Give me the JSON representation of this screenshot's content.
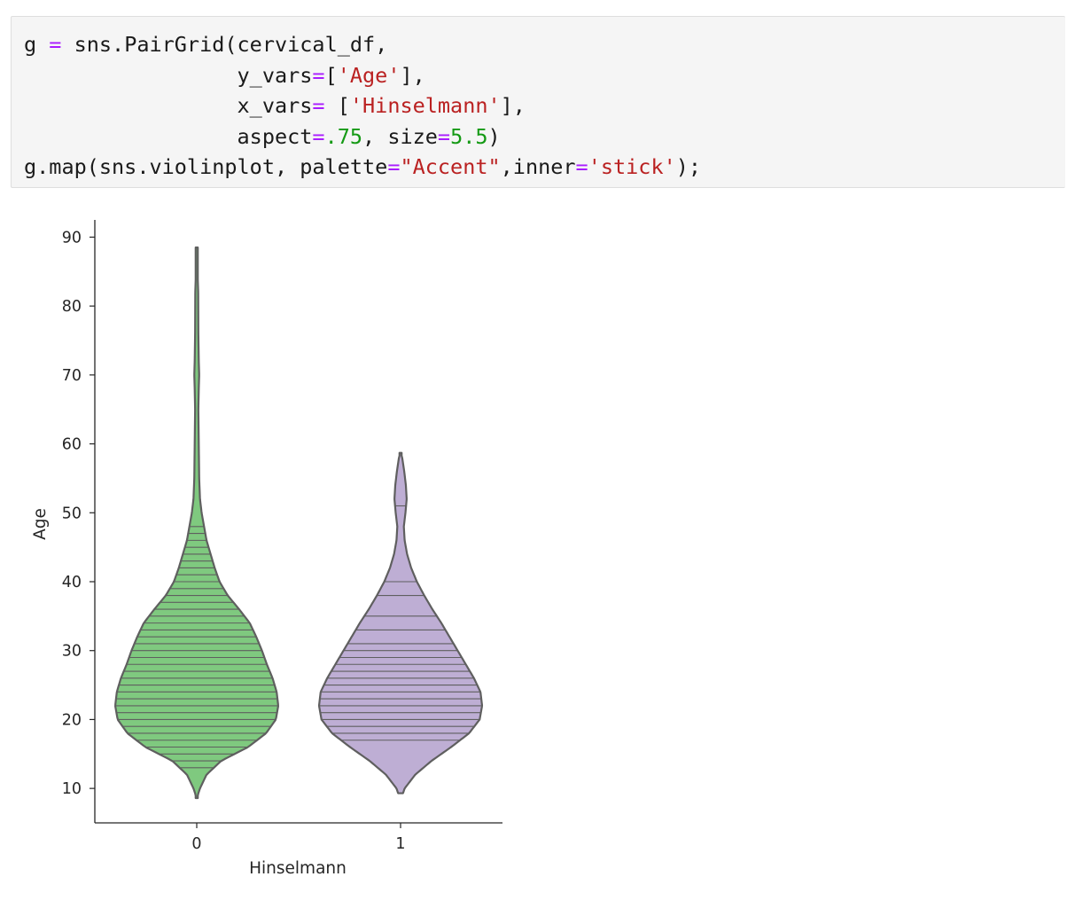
{
  "code_cell": {
    "lines": [
      [
        {
          "t": "g "
        },
        {
          "t": "=",
          "c": "op"
        },
        {
          "t": " sns.PairGrid(cervical_df,"
        }
      ],
      [
        {
          "t": "                 y_vars"
        },
        {
          "t": "=",
          "c": "op"
        },
        {
          "t": "["
        },
        {
          "t": "'Age'",
          "c": "str"
        },
        {
          "t": "],"
        }
      ],
      [
        {
          "t": "                 x_vars"
        },
        {
          "t": "=",
          "c": "op"
        },
        {
          "t": " ["
        },
        {
          "t": "'Hinselmann'",
          "c": "str"
        },
        {
          "t": "],"
        }
      ],
      [
        {
          "t": "                 aspect"
        },
        {
          "t": "=",
          "c": "op"
        },
        {
          "t": ".75",
          "c": "num"
        },
        {
          "t": ", size"
        },
        {
          "t": "=",
          "c": "op"
        },
        {
          "t": "5.5",
          "c": "num"
        },
        {
          "t": ")"
        }
      ],
      [
        {
          "t": "g.map(sns.violinplot, palette"
        },
        {
          "t": "=",
          "c": "op"
        },
        {
          "t": "\"Accent\"",
          "c": "str"
        },
        {
          "t": ",inner"
        },
        {
          "t": "=",
          "c": "op"
        },
        {
          "t": "'stick'",
          "c": "str"
        },
        {
          "t": ");"
        }
      ]
    ]
  },
  "chart_data": {
    "type": "violin",
    "xlabel": "Hinselmann",
    "ylabel": "Age",
    "categories": [
      "0",
      "1"
    ],
    "ylim": [
      5,
      92.5
    ],
    "yticks": [
      10,
      20,
      30,
      40,
      50,
      60,
      70,
      80,
      90
    ],
    "grid": false,
    "colors": {
      "0": "#7fc97f",
      "1": "#beaed4",
      "outline": "#5f5f5f",
      "axis": "#262626"
    },
    "series": [
      {
        "category": "0",
        "min": 8.6,
        "max": 88.5,
        "density_halfwidth": [
          [
            8.6,
            0.0
          ],
          [
            10,
            0.04
          ],
          [
            12,
            0.12
          ],
          [
            14,
            0.3
          ],
          [
            16,
            0.63
          ],
          [
            18,
            0.85
          ],
          [
            20,
            0.97
          ],
          [
            22,
            1.0
          ],
          [
            24,
            0.98
          ],
          [
            26,
            0.93
          ],
          [
            28,
            0.86
          ],
          [
            30,
            0.8
          ],
          [
            32,
            0.73
          ],
          [
            34,
            0.65
          ],
          [
            36,
            0.52
          ],
          [
            38,
            0.38
          ],
          [
            40,
            0.28
          ],
          [
            42,
            0.22
          ],
          [
            44,
            0.17
          ],
          [
            46,
            0.12
          ],
          [
            48,
            0.09
          ],
          [
            50,
            0.06
          ],
          [
            52,
            0.04
          ],
          [
            55,
            0.03
          ],
          [
            60,
            0.025
          ],
          [
            65,
            0.02
          ],
          [
            68,
            0.025
          ],
          [
            70,
            0.03
          ],
          [
            72,
            0.025
          ],
          [
            76,
            0.02
          ],
          [
            82,
            0.018
          ],
          [
            88.5,
            0.0
          ]
        ],
        "sticks": [
          13,
          14,
          15,
          16,
          17,
          18,
          19,
          20,
          21,
          22,
          23,
          24,
          25,
          26,
          27,
          28,
          29,
          30,
          31,
          32,
          33,
          34,
          35,
          36,
          37,
          38,
          39,
          40,
          41,
          42,
          43,
          44,
          45,
          46,
          47,
          48
        ]
      },
      {
        "category": "1",
        "min": 9.3,
        "max": 58.7,
        "density_halfwidth": [
          [
            9.3,
            0.03
          ],
          [
            10,
            0.05
          ],
          [
            12,
            0.18
          ],
          [
            14,
            0.38
          ],
          [
            16,
            0.62
          ],
          [
            18,
            0.84
          ],
          [
            20,
            0.97
          ],
          [
            22,
            1.0
          ],
          [
            24,
            0.98
          ],
          [
            26,
            0.9
          ],
          [
            28,
            0.8
          ],
          [
            30,
            0.7
          ],
          [
            32,
            0.6
          ],
          [
            34,
            0.5
          ],
          [
            36,
            0.39
          ],
          [
            38,
            0.29
          ],
          [
            40,
            0.2
          ],
          [
            42,
            0.13
          ],
          [
            44,
            0.08
          ],
          [
            46,
            0.05
          ],
          [
            48,
            0.04
          ],
          [
            50,
            0.06
          ],
          [
            52,
            0.075
          ],
          [
            54,
            0.065
          ],
          [
            56,
            0.045
          ],
          [
            58,
            0.02
          ],
          [
            58.7,
            0.0
          ]
        ],
        "sticks": [
          17,
          18,
          19,
          20,
          21,
          22,
          23,
          24,
          25,
          26,
          27,
          28,
          29,
          30,
          31,
          33,
          35,
          38,
          40,
          51
        ]
      }
    ]
  }
}
